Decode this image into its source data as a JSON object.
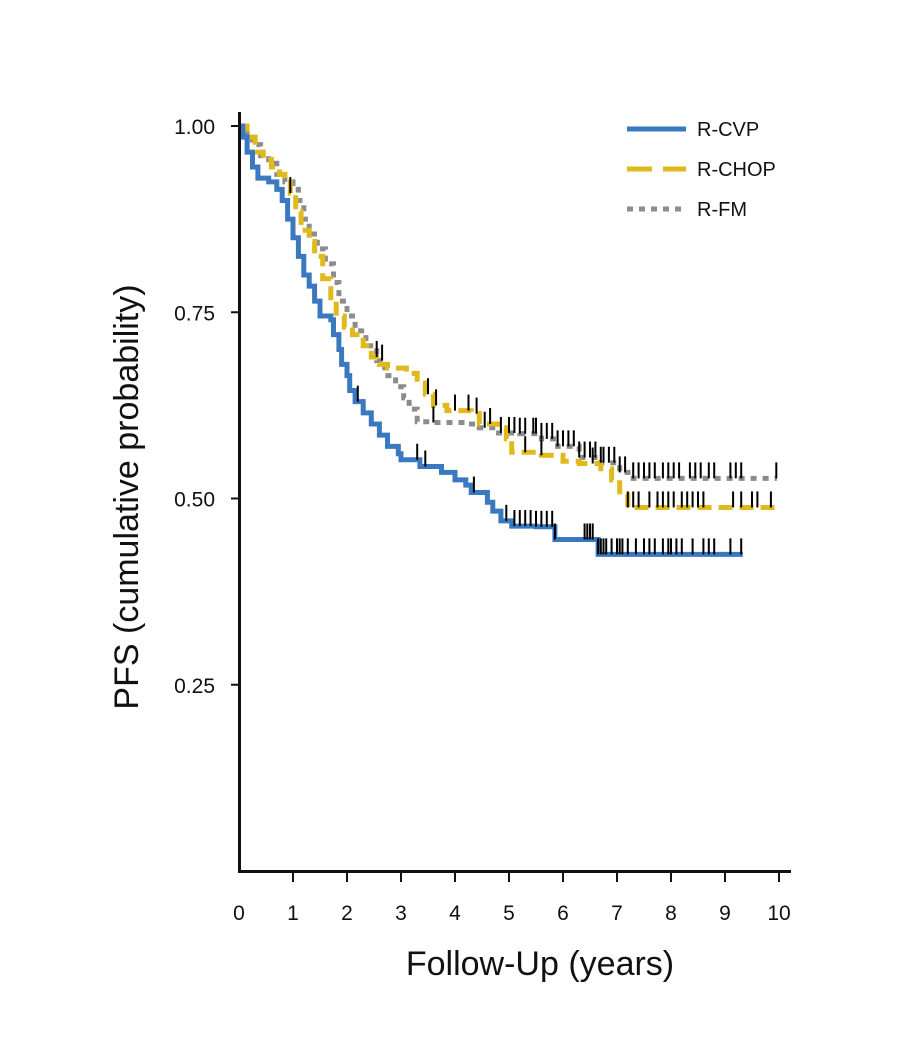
{
  "chart_data": {
    "type": "line",
    "subtype": "kaplan-meier",
    "title": "",
    "xlabel": "Follow-Up (years)",
    "ylabel": "PFS (cumulative probability)",
    "xlim": [
      0,
      10
    ],
    "ylim": [
      0,
      1.0
    ],
    "x_ticks": [
      0,
      1,
      2,
      3,
      4,
      5,
      6,
      7,
      8,
      9,
      10
    ],
    "x_tick_labels": [
      "0",
      "1",
      "2",
      "3",
      "4",
      "5",
      "6",
      "7",
      "8",
      "9",
      "10"
    ],
    "y_ticks": [
      0.25,
      0.5,
      0.75,
      1.0
    ],
    "y_tick_labels": [
      "0.25",
      "0.50",
      "0.75",
      "1.00"
    ],
    "grid": false,
    "legend_position": "top-right",
    "series": [
      {
        "name": "R-CVP",
        "color": "#3a78c0",
        "style": "solid",
        "steps": [
          [
            0,
            1.0
          ],
          [
            0.07,
            0.985
          ],
          [
            0.15,
            0.965
          ],
          [
            0.25,
            0.945
          ],
          [
            0.35,
            0.93
          ],
          [
            0.55,
            0.925
          ],
          [
            0.7,
            0.915
          ],
          [
            0.8,
            0.9
          ],
          [
            0.9,
            0.875
          ],
          [
            1.0,
            0.85
          ],
          [
            1.1,
            0.825
          ],
          [
            1.2,
            0.8
          ],
          [
            1.3,
            0.785
          ],
          [
            1.4,
            0.765
          ],
          [
            1.5,
            0.745
          ],
          [
            1.7,
            0.74
          ],
          [
            1.75,
            0.72
          ],
          [
            1.85,
            0.7
          ],
          [
            1.9,
            0.68
          ],
          [
            2.0,
            0.665
          ],
          [
            2.05,
            0.645
          ],
          [
            2.15,
            0.63
          ],
          [
            2.3,
            0.615
          ],
          [
            2.45,
            0.6
          ],
          [
            2.6,
            0.585
          ],
          [
            2.75,
            0.57
          ],
          [
            2.95,
            0.56
          ],
          [
            3.0,
            0.552
          ],
          [
            3.35,
            0.543
          ],
          [
            3.75,
            0.535
          ],
          [
            4.0,
            0.525
          ],
          [
            4.2,
            0.518
          ],
          [
            4.3,
            0.508
          ],
          [
            4.6,
            0.495
          ],
          [
            4.7,
            0.483
          ],
          [
            4.85,
            0.47
          ],
          [
            5.05,
            0.463
          ],
          [
            5.5,
            0.462
          ],
          [
            5.85,
            0.445
          ],
          [
            6.5,
            0.445
          ],
          [
            6.65,
            0.425
          ],
          [
            9.33,
            0.425
          ]
        ],
        "censor_times": [
          2.2,
          3.3,
          3.45,
          4.35,
          4.95,
          5.1,
          5.2,
          5.3,
          5.4,
          5.5,
          5.6,
          5.7,
          5.8,
          5.85,
          6.4,
          6.45,
          6.5,
          6.55,
          6.65,
          6.7,
          6.75,
          6.8,
          6.9,
          7.0,
          7.05,
          7.1,
          7.2,
          7.35,
          7.5,
          7.6,
          7.7,
          7.85,
          7.95,
          8.0,
          8.1,
          8.2,
          8.4,
          8.6,
          8.7,
          8.8,
          9.1,
          9.3
        ]
      },
      {
        "name": "R-CHOP",
        "color": "#e0b91c",
        "style": "dashed",
        "steps": [
          [
            0,
            1.0
          ],
          [
            0.15,
            0.985
          ],
          [
            0.3,
            0.965
          ],
          [
            0.45,
            0.955
          ],
          [
            0.6,
            0.945
          ],
          [
            0.75,
            0.935
          ],
          [
            0.85,
            0.925
          ],
          [
            0.95,
            0.91
          ],
          [
            1.05,
            0.885
          ],
          [
            1.15,
            0.86
          ],
          [
            1.3,
            0.845
          ],
          [
            1.4,
            0.825
          ],
          [
            1.55,
            0.795
          ],
          [
            1.7,
            0.765
          ],
          [
            1.8,
            0.745
          ],
          [
            1.95,
            0.73
          ],
          [
            2.1,
            0.72
          ],
          [
            2.3,
            0.705
          ],
          [
            2.45,
            0.69
          ],
          [
            2.6,
            0.68
          ],
          [
            2.75,
            0.675
          ],
          [
            3.1,
            0.668
          ],
          [
            3.3,
            0.655
          ],
          [
            3.45,
            0.64
          ],
          [
            3.6,
            0.625
          ],
          [
            3.85,
            0.618
          ],
          [
            4.3,
            0.614
          ],
          [
            4.45,
            0.6
          ],
          [
            4.8,
            0.595
          ],
          [
            4.95,
            0.58
          ],
          [
            5.05,
            0.562
          ],
          [
            5.4,
            0.562
          ],
          [
            5.6,
            0.558
          ],
          [
            6.0,
            0.55
          ],
          [
            6.3,
            0.547
          ],
          [
            6.7,
            0.54
          ],
          [
            6.9,
            0.525
          ],
          [
            7.05,
            0.505
          ],
          [
            7.2,
            0.488
          ],
          [
            9.96,
            0.488
          ]
        ],
        "censor_times": [
          0.95,
          2.55,
          3.5,
          3.65,
          4.0,
          4.25,
          4.4,
          4.65,
          5.3,
          5.6,
          6.55,
          7.2,
          7.3,
          7.4,
          7.6,
          7.75,
          7.85,
          7.95,
          8.05,
          8.2,
          8.3,
          8.4,
          8.5,
          8.6,
          9.15,
          9.3,
          9.5,
          9.6,
          9.85
        ]
      },
      {
        "name": "R-FM",
        "color": "#8c8c8c",
        "style": "dotted",
        "steps": [
          [
            0,
            1.0
          ],
          [
            0.12,
            0.99
          ],
          [
            0.25,
            0.975
          ],
          [
            0.4,
            0.96
          ],
          [
            0.55,
            0.95
          ],
          [
            0.7,
            0.935
          ],
          [
            0.85,
            0.925
          ],
          [
            1.0,
            0.915
          ],
          [
            1.1,
            0.9
          ],
          [
            1.2,
            0.875
          ],
          [
            1.3,
            0.855
          ],
          [
            1.45,
            0.835
          ],
          [
            1.6,
            0.815
          ],
          [
            1.75,
            0.79
          ],
          [
            1.85,
            0.765
          ],
          [
            2.0,
            0.745
          ],
          [
            2.15,
            0.725
          ],
          [
            2.35,
            0.705
          ],
          [
            2.55,
            0.685
          ],
          [
            2.7,
            0.665
          ],
          [
            2.9,
            0.65
          ],
          [
            3.05,
            0.635
          ],
          [
            3.15,
            0.62
          ],
          [
            3.3,
            0.603
          ],
          [
            3.55,
            0.602
          ],
          [
            4.2,
            0.6
          ],
          [
            4.45,
            0.595
          ],
          [
            4.75,
            0.588
          ],
          [
            5.2,
            0.587
          ],
          [
            5.6,
            0.58
          ],
          [
            5.9,
            0.57
          ],
          [
            6.3,
            0.555
          ],
          [
            6.7,
            0.548
          ],
          [
            7.05,
            0.535
          ],
          [
            7.3,
            0.527
          ],
          [
            9.96,
            0.527
          ]
        ],
        "censor_times": [
          2.65,
          3.6,
          4.55,
          4.85,
          5.0,
          5.1,
          5.2,
          5.3,
          5.45,
          5.5,
          5.6,
          5.7,
          5.8,
          5.9,
          6.0,
          6.1,
          6.2,
          6.3,
          6.4,
          6.5,
          6.6,
          6.7,
          6.75,
          6.85,
          6.95,
          7.05,
          7.15,
          7.3,
          7.4,
          7.5,
          7.6,
          7.7,
          7.85,
          7.95,
          8.05,
          8.15,
          8.35,
          8.45,
          8.55,
          8.7,
          8.8,
          9.1,
          9.2,
          9.3,
          9.95
        ]
      }
    ]
  }
}
